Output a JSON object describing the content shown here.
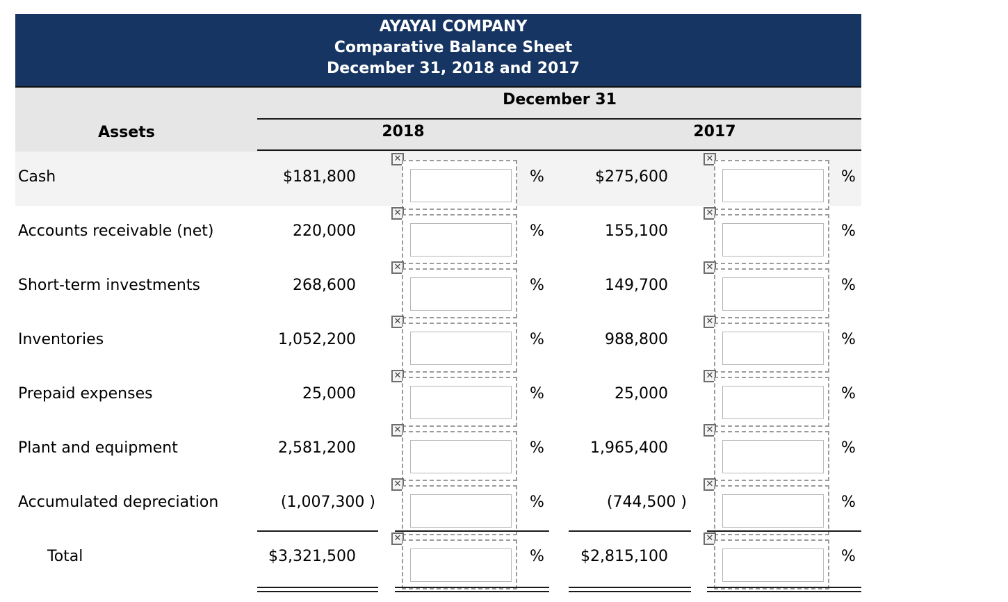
{
  "header": {
    "company": "AYAYAI COMPANY",
    "statement": "Comparative Balance Sheet",
    "date": "December 31, 2018 and 2017"
  },
  "columns": {
    "group": "December 31",
    "assets": "Assets",
    "year1": "2018",
    "year2": "2017",
    "pct_symbol": "%"
  },
  "rows": [
    {
      "label": "Cash",
      "y2018": "$181,800",
      "y2017": "$275,600"
    },
    {
      "label": "Accounts receivable (net)",
      "y2018": "220,000",
      "y2017": "155,100"
    },
    {
      "label": "Short-term investments",
      "y2018": "268,600",
      "y2017": "149,700"
    },
    {
      "label": "Inventories",
      "y2018": "1,052,200",
      "y2017": "988,800"
    },
    {
      "label": "Prepaid expenses",
      "y2018": "25,000",
      "y2017": "25,000"
    },
    {
      "label": "Plant and equipment",
      "y2018": "2,581,200",
      "y2017": "1,965,400"
    },
    {
      "label": "Accumulated depreciation",
      "y2018": "(1,007,300 )",
      "y2017": "(744,500 )"
    },
    {
      "label": "Total",
      "y2018": "$3,321,500",
      "y2017": "$2,815,100"
    }
  ],
  "icons": {
    "input_status": "x-mark-icon"
  }
}
